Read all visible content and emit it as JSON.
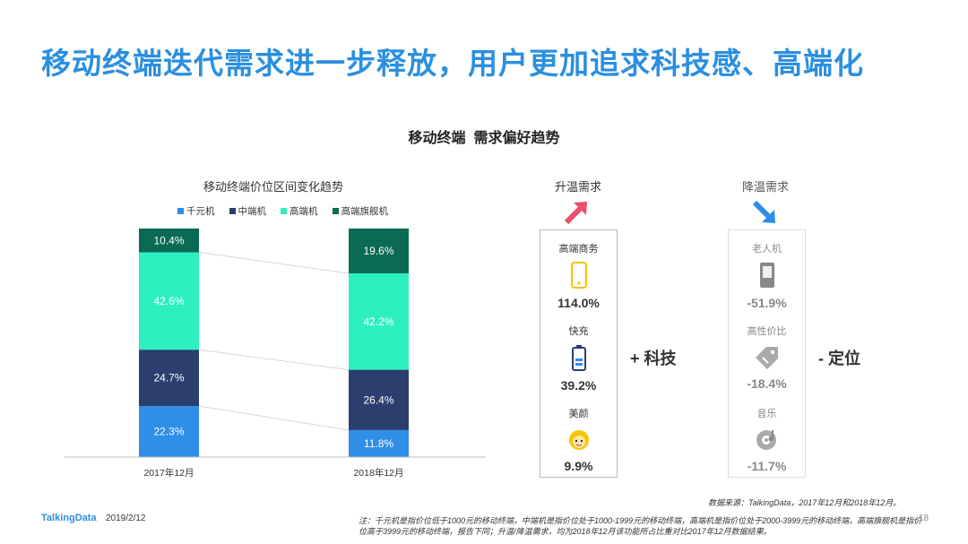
{
  "header": {
    "title": "移动终端迭代需求进一步释放，用户更加追求科技感、高端化"
  },
  "section_title": "移动终端  需求偏好趋势",
  "colors": {
    "title": "#2b8fe0",
    "budget": "#2e8ee8",
    "mid": "#2a3f6e",
    "high": "#2df0c0",
    "flagship": "#0a6a54",
    "warm_arrow": "#e8506e",
    "cool_arrow": "#2e8ee8"
  },
  "chart_data": {
    "type": "bar",
    "stacked": true,
    "title": "移动终端价位区间变化趋势",
    "categories": [
      "2017年12月",
      "2018年12月"
    ],
    "series": [
      {
        "name": "千元机",
        "values": [
          22.3,
          11.8
        ],
        "labels": [
          "22.3%",
          "11.8%"
        ],
        "color": "#2e8ee8"
      },
      {
        "name": "中端机",
        "values": [
          24.7,
          26.4
        ],
        "labels": [
          "24.7%",
          "26.4%"
        ],
        "color": "#2a3f6e"
      },
      {
        "name": "高端机",
        "values": [
          42.6,
          42.2
        ],
        "labels": [
          "42.6%",
          "42.2%"
        ],
        "color": "#2df0c0"
      },
      {
        "name": "高端旗舰机",
        "values": [
          10.4,
          19.6
        ],
        "labels": [
          "10.4%",
          "19.6%"
        ],
        "color": "#0a6a54"
      }
    ],
    "ylim": [
      0,
      100
    ],
    "legend_position": "top",
    "grid": false
  },
  "warming": {
    "title": "升温需求",
    "side_label": "+ 科技",
    "items": [
      {
        "label": "高端商务",
        "value": "114.0%",
        "icon": "phone-icon"
      },
      {
        "label": "快充",
        "value": "39.2%",
        "icon": "battery-icon"
      },
      {
        "label": "美颜",
        "value": "9.9%",
        "icon": "face-icon"
      }
    ]
  },
  "cooling": {
    "title": "降温需求",
    "side_label": "- 定位",
    "items": [
      {
        "label": "老人机",
        "value": "-51.9%",
        "icon": "basic-phone-icon"
      },
      {
        "label": "高性价比",
        "value": "-18.4%",
        "icon": "price-tag-icon"
      },
      {
        "label": "音乐",
        "value": "-11.7%",
        "icon": "music-disc-icon"
      }
    ]
  },
  "footer": {
    "logo": "TalkingData",
    "date": "2019/2/12",
    "source": "数据来源：TalkingData，2017年12月和2018年12月。",
    "note": "注：千元机是指价位低于1000元的移动终端，中端机是指价位处于1000-1999元的移动终端，高端机是指价位处于2000-3999元的移动终端，高端旗舰机是指价位高于3999元的移动终端，报告下同；升温/降温需求，均为2018年12月该功能所占比重对比2017年12月数据结果。",
    "page": "18"
  }
}
